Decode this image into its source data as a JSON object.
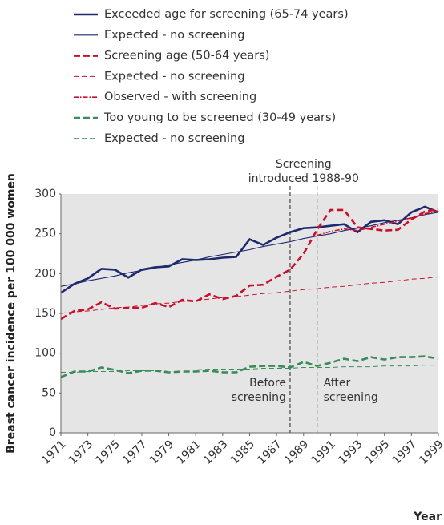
{
  "chart_data": {
    "type": "line",
    "ylabel": "Breast cancer incidence per 100 000 women",
    "xlabel": "Year",
    "x": [
      1971,
      1972,
      1973,
      1974,
      1975,
      1976,
      1977,
      1978,
      1979,
      1980,
      1981,
      1982,
      1983,
      1984,
      1985,
      1986,
      1987,
      1988,
      1989,
      1990,
      1991,
      1992,
      1993,
      1994,
      1995,
      1996,
      1997,
      1998,
      1999
    ],
    "xlim": [
      1971,
      1999
    ],
    "xticks": [
      1971,
      1973,
      1975,
      1977,
      1979,
      1981,
      1983,
      1985,
      1987,
      1989,
      1991,
      1993,
      1995,
      1997,
      1999
    ],
    "ylim": [
      0,
      300
    ],
    "yticks": [
      0,
      50,
      100,
      150,
      200,
      250,
      300
    ],
    "grid": false,
    "background": "#e5e5e5",
    "series": [
      {
        "name": "Exceeded age for screening (65-74 years)",
        "color": "#1f2a6e",
        "style": "thick-solid",
        "values": [
          176,
          187,
          194,
          206,
          205,
          195,
          205,
          208,
          209,
          218,
          217,
          218,
          220,
          221,
          243,
          236,
          245,
          252,
          257,
          258,
          260,
          262,
          252,
          265,
          267,
          262,
          277,
          284,
          277
        ]
      },
      {
        "name": "Expected - no screening",
        "color": "#1f2a6e",
        "style": "thin-solid",
        "values": [
          184,
          187,
          191,
          194,
          197,
          201,
          204,
          207,
          211,
          214,
          217,
          221,
          224,
          227,
          230,
          234,
          237,
          240,
          244,
          247,
          250,
          254,
          257,
          260,
          264,
          267,
          270,
          274,
          277
        ]
      },
      {
        "name": "Screening age (50-64 years)",
        "color": "#c8102e",
        "style": "thick-dashed",
        "values": [
          143,
          153,
          155,
          164,
          156,
          157,
          157,
          163,
          158,
          167,
          165,
          174,
          168,
          172,
          185,
          186,
          196,
          205,
          225,
          255,
          280,
          280,
          258,
          256,
          254,
          255,
          268,
          278,
          281
        ]
      },
      {
        "name": "Expected - no screening",
        "color": "#c8102e",
        "style": "thin-dashed",
        "values": [
          150,
          152,
          153,
          155,
          157,
          158,
          160,
          162,
          163,
          165,
          166,
          168,
          170,
          171,
          173,
          175,
          176,
          178,
          180,
          181,
          183,
          184,
          186,
          188,
          189,
          191,
          193,
          194,
          196
        ]
      },
      {
        "name": "Observed - with screening",
        "color": "#c8102e",
        "style": "dashdot",
        "values": [
          null,
          null,
          null,
          null,
          null,
          null,
          null,
          null,
          null,
          null,
          null,
          null,
          null,
          null,
          null,
          null,
          null,
          null,
          null,
          248,
          253,
          256,
          254,
          258,
          262,
          266,
          270,
          275,
          279
        ]
      },
      {
        "name": "Too young to be screened (30-49 years)",
        "color": "#3a8a5a",
        "style": "thick-dashed",
        "values": [
          70,
          77,
          77,
          82,
          79,
          75,
          78,
          78,
          76,
          77,
          77,
          78,
          76,
          76,
          83,
          84,
          84,
          82,
          89,
          84,
          88,
          93,
          90,
          95,
          92,
          95,
          95,
          96,
          93
        ]
      },
      {
        "name": "Expected - no screening",
        "color": "#3a8a5a",
        "style": "thin-dashed",
        "values": [
          76,
          76,
          77,
          77,
          77,
          78,
          78,
          78,
          79,
          79,
          79,
          80,
          80,
          80,
          80,
          81,
          81,
          81,
          82,
          82,
          82,
          83,
          83,
          83,
          84,
          84,
          84,
          85,
          85
        ]
      }
    ],
    "vlines": [
      1988,
      1990
    ],
    "annotations": [
      {
        "lines": [
          "Screening",
          "introduced 1988-90"
        ]
      },
      {
        "lines": [
          "Before",
          "screening"
        ]
      },
      {
        "lines": [
          "After",
          "screening"
        ]
      }
    ]
  }
}
